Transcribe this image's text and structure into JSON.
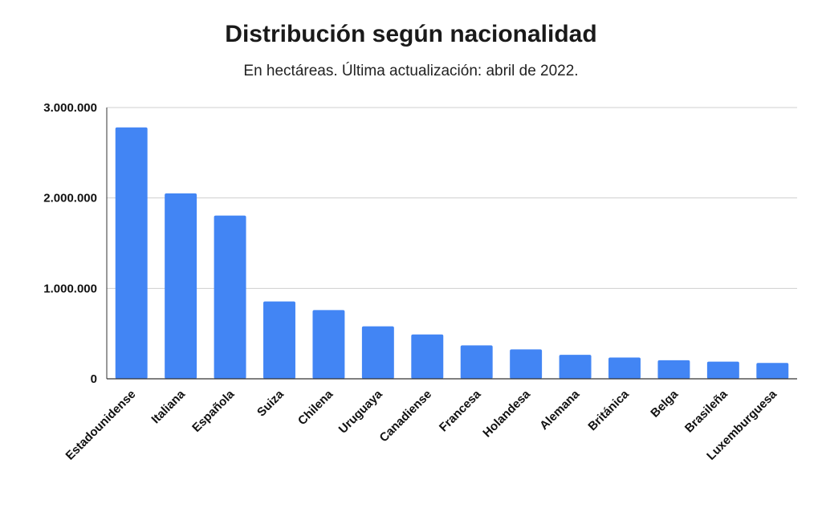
{
  "chart_data": {
    "type": "bar",
    "title": "Distribución según nacionalidad",
    "subtitle": "En hectáreas. Última actualización: abril de 2022.",
    "xlabel": "",
    "ylabel": "",
    "ylim": [
      0,
      3000000
    ],
    "yticks": [
      0,
      1000000,
      2000000,
      3000000
    ],
    "ytick_labels": [
      "0",
      "1.000.000",
      "2.000.000",
      "3.000.000"
    ],
    "grid": true,
    "bar_color": "#4285F4",
    "categories": [
      "Estadounidense",
      "Italiana",
      "Española",
      "Suiza",
      "Chilena",
      "Uruguaya",
      "Canadiense",
      "Francesa",
      "Holandesa",
      "Alemana",
      "Británica",
      "Belga",
      "Brasileña",
      "Luxemburguesa"
    ],
    "values": [
      2780000,
      2050000,
      1805000,
      855000,
      760000,
      580000,
      490000,
      370000,
      325000,
      265000,
      235000,
      205000,
      190000,
      175000
    ]
  }
}
